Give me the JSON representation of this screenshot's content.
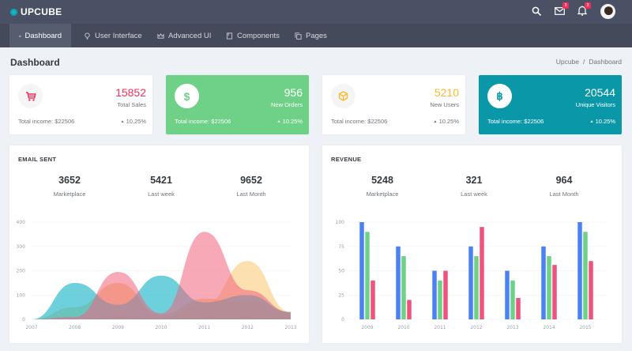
{
  "app": {
    "brand": "UPCUBE",
    "top_icons": [
      {
        "name": "search-icon"
      },
      {
        "name": "mail-icon",
        "badge": "3"
      },
      {
        "name": "bell-icon",
        "badge": "3"
      }
    ]
  },
  "nav": {
    "items": [
      {
        "label": "Dashboard",
        "icon": "home-icon",
        "active": true
      },
      {
        "label": "User Interface",
        "icon": "lightbulb-icon",
        "active": false
      },
      {
        "label": "Advanced UI",
        "icon": "crown-icon",
        "active": false
      },
      {
        "label": "Components",
        "icon": "book-icon",
        "active": false
      },
      {
        "label": "Pages",
        "icon": "pages-icon",
        "active": false
      }
    ]
  },
  "page": {
    "title": "Dashboard",
    "breadcrumb": [
      "Upcube",
      "/",
      "Dashboard"
    ]
  },
  "stats": [
    {
      "value": "15852",
      "label": "Total Sales",
      "footer": "Total income: $22506",
      "change": "10.25%",
      "icon": "cart-icon",
      "accent": "#f0305b"
    },
    {
      "value": "956",
      "label": "New Orders",
      "footer": "Total income: $22506",
      "change": "10.25%",
      "icon": "dollar-icon",
      "accent": "#6fd088"
    },
    {
      "value": "5210",
      "label": "New Users",
      "footer": "Total income: $22506",
      "change": "10.25%",
      "icon": "cube-icon",
      "accent": "#fcb92c"
    },
    {
      "value": "20544",
      "label": "Unique Visitors",
      "footer": "Total income: $22506",
      "change": "10.25%",
      "icon": "bitcoin-icon",
      "accent": "#0a98a8"
    }
  ],
  "email_card": {
    "title": "EMAIL SENT",
    "kpis": [
      {
        "value": "3652",
        "label": "Marketplace"
      },
      {
        "value": "5421",
        "label": "Last week"
      },
      {
        "value": "9652",
        "label": "Last Month"
      }
    ]
  },
  "revenue_card": {
    "title": "REVENUE",
    "kpis": [
      {
        "value": "5248",
        "label": "Marketplace"
      },
      {
        "value": "321",
        "label": "Last week"
      },
      {
        "value": "964",
        "label": "Last Month"
      }
    ]
  },
  "chart_data": [
    {
      "type": "area",
      "title": "EMAIL SENT",
      "x": [
        "2007",
        "2008",
        "2009",
        "2010",
        "2011",
        "2012",
        "2013"
      ],
      "yticks": [
        0,
        100,
        200,
        300,
        400
      ],
      "ylim": [
        0,
        400
      ],
      "grid": true,
      "series": [
        {
          "name": "series-a",
          "color": "#f5c86f",
          "values": [
            0,
            50,
            150,
            20,
            85,
            75,
            30
          ]
        },
        {
          "name": "series-b",
          "color": "#2fbccb",
          "values": [
            0,
            150,
            60,
            180,
            70,
            100,
            30
          ]
        },
        {
          "name": "series-c",
          "color": "#f0627e",
          "values": [
            0,
            10,
            195,
            25,
            360,
            120,
            30
          ]
        },
        {
          "name": "series-d",
          "color": "#fbd38d",
          "values": [
            0,
            0,
            10,
            5,
            60,
            240,
            30
          ]
        }
      ]
    },
    {
      "type": "bar",
      "title": "REVENUE",
      "categories": [
        "2009",
        "2010",
        "2011",
        "2012",
        "2013",
        "2014",
        "2015"
      ],
      "yticks": [
        0,
        25,
        50,
        75,
        100
      ],
      "ylim": [
        0,
        100
      ],
      "grid": true,
      "series": [
        {
          "name": "series-a",
          "color": "#4a81f5",
          "values": [
            100,
            75,
            50,
            75,
            50,
            75,
            100
          ]
        },
        {
          "name": "series-b",
          "color": "#6fd088",
          "values": [
            90,
            65,
            40,
            65,
            40,
            65,
            90
          ]
        },
        {
          "name": "series-c",
          "color": "#f0527e",
          "values": [
            40,
            20,
            50,
            95,
            22,
            56,
            60
          ]
        }
      ]
    }
  ]
}
